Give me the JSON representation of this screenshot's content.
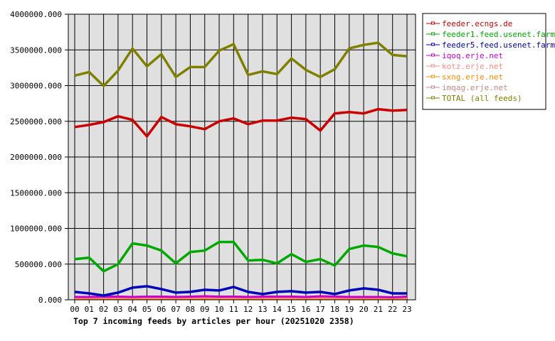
{
  "chart_data": {
    "type": "line",
    "title": "Top 7 incoming feeds by articles per hour (20251020 2358)",
    "xlabel": "",
    "ylabel": "",
    "ylim": [
      0,
      4000000
    ],
    "grid": true,
    "legend_position": "right",
    "y_ticks": [
      "0.000",
      "500000.000",
      "1000000.000",
      "1500000.000",
      "2000000.000",
      "2500000.000",
      "3000000.000",
      "3500000.000",
      "4000000.000"
    ],
    "categories": [
      "00",
      "01",
      "02",
      "03",
      "04",
      "05",
      "06",
      "07",
      "08",
      "09",
      "10",
      "11",
      "12",
      "13",
      "14",
      "15",
      "16",
      "17",
      "18",
      "19",
      "20",
      "21",
      "22",
      "23"
    ],
    "series": [
      {
        "name": "feeder.ecngs.de",
        "color": "#cc0000",
        "values": [
          2420000,
          2450000,
          2490000,
          2570000,
          2520000,
          2290000,
          2560000,
          2460000,
          2430000,
          2390000,
          2500000,
          2540000,
          2460000,
          2510000,
          2510000,
          2550000,
          2530000,
          2370000,
          2610000,
          2630000,
          2610000,
          2670000,
          2650000,
          2660000
        ]
      },
      {
        "name": "feeder1.feed.usenet.farm",
        "color": "#00aa00",
        "values": [
          570000,
          590000,
          400000,
          500000,
          790000,
          760000,
          690000,
          510000,
          670000,
          690000,
          810000,
          810000,
          550000,
          560000,
          510000,
          640000,
          530000,
          570000,
          480000,
          710000,
          760000,
          740000,
          650000,
          610000
        ]
      },
      {
        "name": "feeder5.feed.usenet.farm",
        "color": "#0000bb",
        "values": [
          110000,
          90000,
          60000,
          100000,
          170000,
          190000,
          150000,
          100000,
          110000,
          140000,
          130000,
          180000,
          110000,
          80000,
          110000,
          120000,
          100000,
          110000,
          80000,
          130000,
          160000,
          140000,
          90000,
          90000
        ]
      },
      {
        "name": "iqoq.erje.net",
        "color": "#cc00cc",
        "values": [
          40000,
          40000,
          45000,
          45000,
          40000,
          45000,
          45000,
          40000,
          45000,
          50000,
          45000,
          45000,
          40000,
          45000,
          45000,
          45000,
          40000,
          50000,
          45000,
          40000,
          40000,
          40000,
          35000,
          45000
        ]
      },
      {
        "name": "kotz.erje.net",
        "color": "#ff8888",
        "values": [
          30000,
          30000,
          30000,
          30000,
          30000,
          30000,
          30000,
          30000,
          30000,
          30000,
          30000,
          30000,
          30000,
          30000,
          30000,
          30000,
          30000,
          30000,
          30000,
          30000,
          30000,
          30000,
          30000,
          30000
        ]
      },
      {
        "name": "sxng.erje.net",
        "color": "#ff8800",
        "values": [
          20000,
          20000,
          20000,
          20000,
          20000,
          20000,
          20000,
          20000,
          20000,
          20000,
          20000,
          20000,
          20000,
          20000,
          20000,
          20000,
          20000,
          20000,
          20000,
          20000,
          20000,
          20000,
          20000,
          20000
        ]
      },
      {
        "name": "imqag.erje.net",
        "color": "#cc8888",
        "values": [
          15000,
          15000,
          15000,
          15000,
          15000,
          15000,
          15000,
          15000,
          15000,
          15000,
          15000,
          15000,
          15000,
          15000,
          15000,
          15000,
          15000,
          15000,
          15000,
          15000,
          15000,
          15000,
          15000,
          15000
        ]
      },
      {
        "name": "TOTAL (all feeds)",
        "color": "#808000",
        "values": [
          3140000,
          3190000,
          2995000,
          3210000,
          3520000,
          3270000,
          3440000,
          3120000,
          3260000,
          3260000,
          3490000,
          3580000,
          3150000,
          3200000,
          3160000,
          3380000,
          3220000,
          3120000,
          3230000,
          3520000,
          3570000,
          3600000,
          3430000,
          3410000
        ]
      }
    ]
  },
  "legend": {
    "items": [
      {
        "label": "feeder.ecngs.de",
        "color": "#cc0000"
      },
      {
        "label": "feeder1.feed.usenet.farm",
        "color": "#00aa00"
      },
      {
        "label": "feeder5.feed.usenet.farm",
        "color": "#0000bb"
      },
      {
        "label": "iqoq.erje.net",
        "color": "#cc00cc"
      },
      {
        "label": "kotz.erje.net",
        "color": "#ff8888"
      },
      {
        "label": "sxng.erje.net",
        "color": "#ff8800"
      },
      {
        "label": "imqag.erje.net",
        "color": "#cc8888"
      },
      {
        "label": "TOTAL (all feeds)",
        "color": "#808000"
      }
    ]
  },
  "colors": {
    "plot_background": "#e0e0e0",
    "grid": "#000000",
    "page_background": "#ffffff"
  }
}
